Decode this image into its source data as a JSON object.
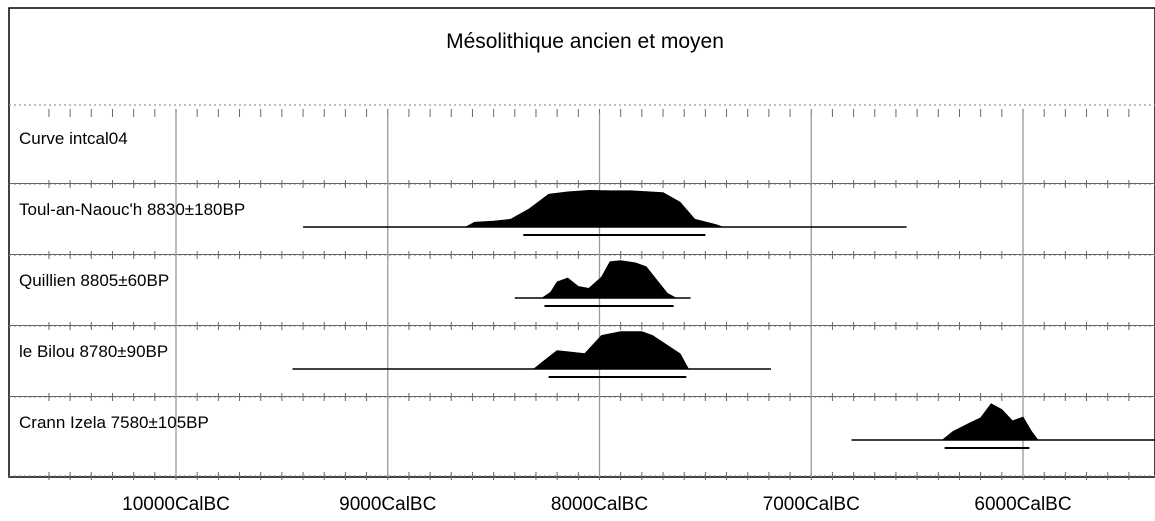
{
  "chart_data": {
    "type": "calibrated-radiocarbon-plot",
    "title": "Mésolithique ancien et moyen",
    "x_axis": {
      "ticks": [
        10000,
        9000,
        8000,
        7000,
        6000
      ],
      "tick_labels": [
        "10000CalBC",
        "9000CalBC",
        "8000CalBC",
        "7000CalBC",
        "6000CalBC"
      ],
      "direction": "decreasing-left-to-right",
      "range": [
        10800,
        5450
      ]
    },
    "grid": true,
    "rows": [
      {
        "label": "Curve intcal04"
      },
      {
        "label": "Toul-an-Naouc'h  8830±180BP",
        "range_2sigma": [
          9400,
          6550
        ],
        "hpd_1sigma": [
          8360,
          7500
        ],
        "distribution": [
          [
            8630,
            0.0
          ],
          [
            8590,
            0.12
          ],
          [
            8500,
            0.15
          ],
          [
            8420,
            0.2
          ],
          [
            8330,
            0.48
          ],
          [
            8240,
            0.86
          ],
          [
            8150,
            0.92
          ],
          [
            8050,
            0.96
          ],
          [
            7950,
            0.95
          ],
          [
            7850,
            0.95
          ],
          [
            7700,
            0.9
          ],
          [
            7620,
            0.65
          ],
          [
            7550,
            0.2
          ],
          [
            7450,
            0.06
          ],
          [
            7420,
            0.0
          ]
        ]
      },
      {
        "label": "Quillien  8805±60BP",
        "range_2sigma": [
          8400,
          7570
        ],
        "hpd_1sigma": [
          8260,
          7650
        ],
        "distribution": [
          [
            8270,
            0.0
          ],
          [
            8230,
            0.15
          ],
          [
            8200,
            0.42
          ],
          [
            8150,
            0.52
          ],
          [
            8100,
            0.3
          ],
          [
            8050,
            0.25
          ],
          [
            7990,
            0.55
          ],
          [
            7950,
            0.95
          ],
          [
            7900,
            0.98
          ],
          [
            7830,
            0.92
          ],
          [
            7780,
            0.82
          ],
          [
            7720,
            0.4
          ],
          [
            7680,
            0.12
          ],
          [
            7640,
            0.0
          ]
        ]
      },
      {
        "label": "le Bilou  8780±90BP",
        "range_2sigma": [
          9450,
          7190
        ],
        "hpd_1sigma": [
          8240,
          7590
        ],
        "distribution": [
          [
            8310,
            0.0
          ],
          [
            8260,
            0.22
          ],
          [
            8200,
            0.48
          ],
          [
            8150,
            0.45
          ],
          [
            8070,
            0.4
          ],
          [
            7990,
            0.88
          ],
          [
            7900,
            0.98
          ],
          [
            7800,
            0.98
          ],
          [
            7750,
            0.88
          ],
          [
            7680,
            0.62
          ],
          [
            7620,
            0.4
          ],
          [
            7580,
            0.0
          ]
        ]
      },
      {
        "label": "Crann Izela  7580±105BP",
        "range_2sigma": [
          6810,
          5280
        ],
        "hpd_1sigma": [
          6370,
          5970
        ],
        "distribution": [
          [
            6380,
            0.0
          ],
          [
            6330,
            0.22
          ],
          [
            6250,
            0.45
          ],
          [
            6200,
            0.58
          ],
          [
            6150,
            0.95
          ],
          [
            6100,
            0.8
          ],
          [
            6050,
            0.5
          ],
          [
            6000,
            0.6
          ],
          [
            5960,
            0.22
          ],
          [
            5930,
            0.0
          ]
        ]
      }
    ]
  }
}
